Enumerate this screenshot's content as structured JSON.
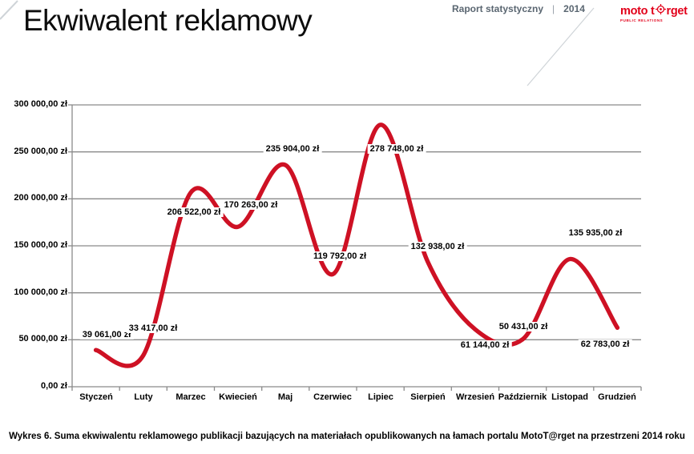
{
  "header": {
    "title": "Ekwiwalent reklamowy",
    "report_label": "Raport statystyczny",
    "separator": "|",
    "year": "2014",
    "logo": {
      "text_pre": "moto t",
      "text_post": "rget",
      "subtitle": "PUBLIC RELATIONS",
      "color": "#e2001a"
    }
  },
  "chart_data": {
    "type": "line",
    "title": "",
    "categories": [
      "Styczeń",
      "Luty",
      "Marzec",
      "Kwiecień",
      "Maj",
      "Czerwiec",
      "Lipiec",
      "Sierpień",
      "Wrzesień",
      "Październik",
      "Listopad",
      "Grudzień"
    ],
    "series": [
      {
        "name": "Ekwiwalent reklamowy",
        "values": [
          39061,
          33417,
          206522,
          170263,
          235904,
          119792,
          278748,
          132938,
          61144,
          50431,
          135935,
          62783
        ]
      }
    ],
    "data_labels": [
      "39 061,00 zł",
      "33 417,00 zł",
      "206 522,00 zł",
      "170 263,00 zł",
      "235 904,00 zł",
      "119 792,00 zł",
      "278 748,00 zł",
      "132 938,00 zł",
      "61 144,00 zł",
      "50 431,00 zł",
      "135 935,00 zł",
      "62 783,00 zł"
    ],
    "y_ticks": [
      "300 000,00 zł",
      "250 000,00 zł",
      "200 000,00 zł",
      "150 000,00 zł",
      "100 000,00 zł",
      "50 000,00 zł",
      "0,00 zł"
    ],
    "ylim": [
      0,
      300000
    ],
    "grid": true,
    "legend": "none",
    "smooth": true,
    "line_color": "#ce1124",
    "grid_color": "#8a8a8a"
  },
  "caption": "Wykres 6. Suma ekwiwalentu reklamowego publikacji bazujących na materiałach opublikowanych na łamach portalu MotoT@rget na przestrzeni 2014 roku"
}
